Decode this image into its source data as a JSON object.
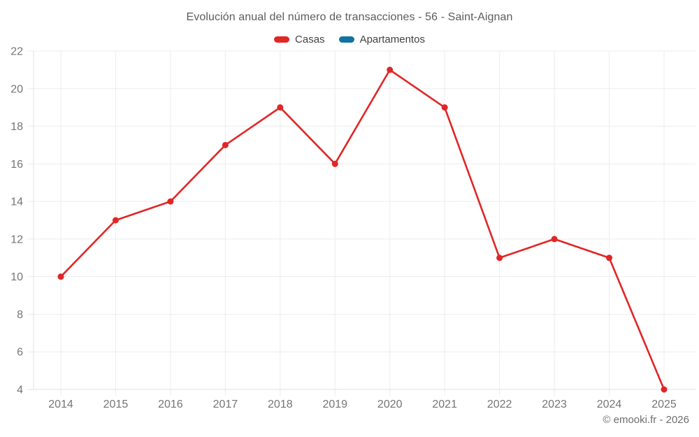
{
  "header": {
    "title": "Evolución anual del número de transacciones - 56 - Saint-Aignan"
  },
  "legend": {
    "items": [
      {
        "label": "Casas",
        "color": "#e12626"
      },
      {
        "label": "Apartamentos",
        "color": "#1273a2"
      }
    ]
  },
  "chart_data": {
    "type": "line",
    "title": "Evolución anual del número de transacciones - 56 - Saint-Aignan",
    "categories": [
      "2014",
      "2015",
      "2016",
      "2017",
      "2018",
      "2019",
      "2020",
      "2021",
      "2022",
      "2023",
      "2024",
      "2025"
    ],
    "series": [
      {
        "name": "Casas",
        "color": "#e12626",
        "values": [
          10,
          13,
          14,
          17,
          19,
          16,
          21,
          19,
          11,
          12,
          11,
          4
        ]
      },
      {
        "name": "Apartamentos",
        "color": "#1273a2",
        "values": []
      }
    ],
    "xlabel": "",
    "ylabel": "",
    "ylim": [
      4,
      22
    ],
    "ytick_step": 2,
    "grid": true,
    "legend_position": "top"
  },
  "footer": {
    "copyright": "© emooki.fr - 2026"
  },
  "colors": {
    "grid_line": "#ededed",
    "axis_line": "#e2e2e2",
    "tick_text": "#757575",
    "point_fill": "#e12626"
  }
}
